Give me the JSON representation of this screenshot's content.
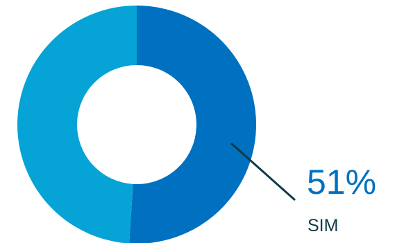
{
  "chart_data": {
    "type": "pie",
    "donut": true,
    "slices": [
      {
        "value": 51,
        "color": "#0070c0"
      },
      {
        "value": 49,
        "color": "#06a3d6"
      }
    ],
    "annotation": {
      "value_text": "51%",
      "label_text": "SIM",
      "value_color": "#0070c0",
      "label_color": "#0d3b45",
      "leader_color": "#0d3b45"
    }
  }
}
